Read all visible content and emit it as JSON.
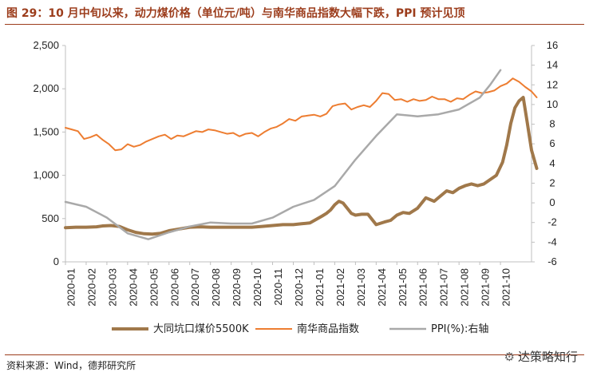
{
  "title": "图 29：10 月中旬以来，动力煤价格（单位元/吨）与南华商品指数大幅下跌，PPI 预计见顶",
  "source": "资料来源：Wind，德邦研究所",
  "watermark": "达策略知行",
  "chart_data": {
    "type": "line",
    "x_tick_labels": [
      "2020-01",
      "2020-02",
      "2020-03",
      "2020-04",
      "2020-05",
      "2020-06",
      "2020-07",
      "2020-08",
      "2020-09",
      "2020-10",
      "2020-11",
      "2020-12",
      "2021-01",
      "2021-02",
      "2021-03",
      "2021-04",
      "2021-05",
      "2021-06",
      "2021-07",
      "2021-08",
      "2021-09",
      "2021-10"
    ],
    "x_range": [
      0,
      22.5
    ],
    "y_left": {
      "ticks": [
        "0",
        "500",
        "1,000",
        "1,500",
        "2,000",
        "2,500"
      ],
      "range": [
        0,
        2500
      ]
    },
    "y_right": {
      "ticks": [
        "-6",
        "-4",
        "-2",
        "0",
        "2",
        "4",
        "6",
        "8",
        "10",
        "12",
        "14",
        "16"
      ],
      "range": [
        -6,
        16
      ]
    },
    "series": [
      {
        "name": "大同坑口煤价5500K",
        "axis": "left",
        "color": "#a0784a",
        "x": [
          0,
          0.5,
          1,
          1.5,
          1.8,
          2.2,
          2.6,
          3,
          3.4,
          3.8,
          4.2,
          4.6,
          5,
          5.5,
          6,
          6.5,
          7,
          7.5,
          8,
          8.5,
          9,
          9.5,
          10,
          10.5,
          11,
          11.4,
          11.8,
          12.1,
          12.4,
          12.6,
          12.8,
          13,
          13.2,
          13.4,
          13.6,
          13.8,
          14,
          14.3,
          14.6,
          15,
          15.4,
          15.7,
          16,
          16.3,
          16.6,
          17,
          17.4,
          17.8,
          18.1,
          18.4,
          18.7,
          19,
          19.3,
          19.6,
          19.9,
          20.2,
          20.5,
          20.8,
          21.1,
          21.3,
          21.5,
          21.7,
          21.9,
          22.1
        ],
        "values": [
          395,
          400,
          400,
          405,
          415,
          420,
          410,
          370,
          340,
          325,
          320,
          330,
          360,
          380,
          400,
          405,
          400,
          400,
          400,
          400,
          400,
          410,
          420,
          430,
          430,
          440,
          450,
          490,
          530,
          560,
          600,
          660,
          700,
          680,
          620,
          560,
          540,
          550,
          550,
          430,
          460,
          480,
          540,
          570,
          560,
          620,
          740,
          700,
          760,
          820,
          800,
          850,
          880,
          900,
          880,
          900,
          950,
          1000,
          1150,
          1350,
          1600,
          1780,
          1860,
          1900
        ],
        "values_tail": {
          "x": [
            22.3,
            22.5,
            22.75
          ],
          "values": [
            1600,
            1290,
            1080
          ]
        }
      },
      {
        "name": "南华商品指数",
        "axis": "left",
        "color": "#ed7d31",
        "x": [
          0,
          0.3,
          0.6,
          0.9,
          1.2,
          1.5,
          1.8,
          2.1,
          2.4,
          2.7,
          3,
          3.3,
          3.6,
          3.9,
          4.2,
          4.5,
          4.8,
          5.1,
          5.4,
          5.7,
          6,
          6.3,
          6.6,
          6.9,
          7.2,
          7.5,
          7.8,
          8.1,
          8.4,
          8.7,
          9,
          9.3,
          9.6,
          9.9,
          10.2,
          10.5,
          10.8,
          11.1,
          11.4,
          11.7,
          12,
          12.3,
          12.6,
          12.9,
          13.2,
          13.5,
          13.8,
          14.1,
          14.4,
          14.7,
          15,
          15.3,
          15.6,
          15.9,
          16.2,
          16.5,
          16.8,
          17.1,
          17.4,
          17.7,
          18,
          18.3,
          18.6,
          18.9,
          19.2,
          19.5,
          19.8,
          20.1,
          20.4,
          20.7,
          21,
          21.3,
          21.6,
          21.9,
          22.2,
          22.5,
          22.75
        ],
        "values": [
          1550,
          1530,
          1510,
          1420,
          1440,
          1470,
          1410,
          1360,
          1290,
          1300,
          1360,
          1330,
          1350,
          1390,
          1420,
          1450,
          1470,
          1420,
          1460,
          1450,
          1480,
          1510,
          1500,
          1530,
          1520,
          1500,
          1480,
          1490,
          1450,
          1480,
          1490,
          1450,
          1500,
          1540,
          1560,
          1600,
          1650,
          1630,
          1680,
          1690,
          1700,
          1680,
          1710,
          1800,
          1820,
          1830,
          1760,
          1790,
          1810,
          1790,
          1860,
          1950,
          1940,
          1870,
          1880,
          1850,
          1880,
          1860,
          1870,
          1910,
          1880,
          1880,
          1850,
          1890,
          1880,
          1930,
          1970,
          1950,
          1960,
          1980,
          2030,
          2060,
          2120,
          2080,
          2020,
          1970,
          1900
        ],
        "values_note": "approximate"
      },
      {
        "name": "PPI(%):右轴",
        "axis": "right",
        "color": "#a9a9a9",
        "x": [
          0,
          1,
          2,
          3,
          4,
          5,
          6,
          7,
          8,
          9,
          10,
          11,
          12,
          13,
          14,
          15,
          16,
          17,
          18,
          19,
          20,
          20.5,
          21
        ],
        "values": [
          0.1,
          -0.4,
          -1.5,
          -3.1,
          -3.7,
          -3.0,
          -2.4,
          -2.0,
          -2.1,
          -2.1,
          -1.5,
          -0.4,
          0.3,
          1.7,
          4.4,
          6.8,
          9.0,
          8.8,
          9.0,
          9.5,
          10.7,
          12,
          13.5
        ]
      }
    ],
    "legend": [
      "大同坑口煤价5500K",
      "南华商品指数",
      "PPI(%):右轴"
    ],
    "legend_position": "bottom"
  }
}
